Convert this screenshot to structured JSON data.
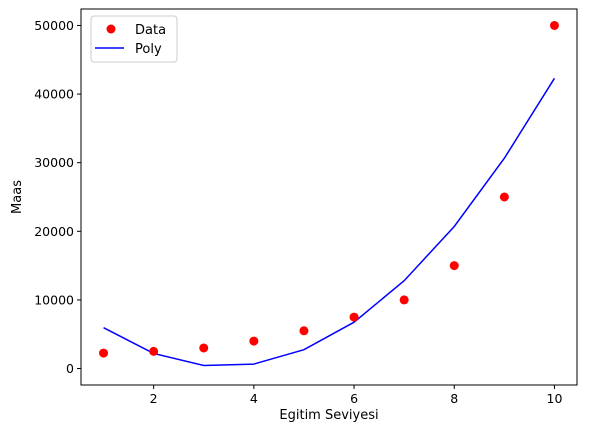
{
  "chart_data": {
    "type": "scatter",
    "xlabel": "Egitim Seviyesi",
    "ylabel": "Maas",
    "xlim": [
      0.55,
      10.45
    ],
    "ylim": [
      -2400,
      52400
    ],
    "xticks": [
      2,
      4,
      6,
      8,
      10
    ],
    "yticks": [
      0,
      10000,
      20000,
      30000,
      40000,
      50000
    ],
    "grid": false,
    "legend_position": "top-left",
    "series": [
      {
        "name": "Data",
        "kind": "scatter",
        "color": "#ff0000",
        "x": [
          1,
          2,
          3,
          4,
          5,
          6,
          7,
          8,
          9,
          10
        ],
        "y": [
          2250,
          2500,
          3000,
          4000,
          5500,
          7500,
          10000,
          15000,
          25000,
          50000
        ]
      },
      {
        "name": "Poly",
        "kind": "line",
        "color": "#0000ff",
        "x": [
          1,
          2,
          3,
          4,
          5,
          6,
          7,
          8,
          9,
          10
        ],
        "y": [
          5950,
          2200,
          450,
          650,
          2750,
          6750,
          12800,
          20700,
          30650,
          42300
        ]
      }
    ]
  }
}
